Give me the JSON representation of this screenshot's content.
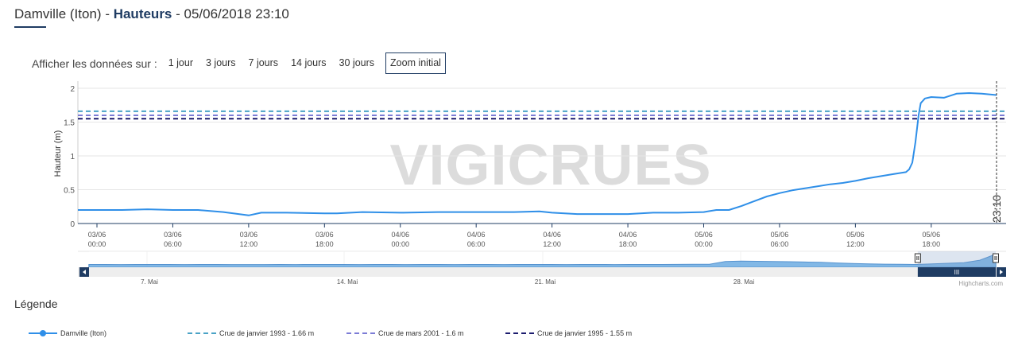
{
  "header": {
    "station": "Damville (Iton)",
    "separator1": " - ",
    "measure": "Hauteurs",
    "separator2": " - ",
    "datetime": "05/06/2018 23:10"
  },
  "range_selector": {
    "label": "Afficher les données sur :",
    "buttons": [
      "1 jour",
      "3 jours",
      "7 jours",
      "14 jours",
      "30 jours"
    ],
    "zoom_label": "Zoom initial"
  },
  "chart_data": {
    "type": "line",
    "title": "",
    "ylabel": "Hauteur (m)",
    "xlabel": "",
    "ylim": [
      0,
      2
    ],
    "y_ticks": [
      "0",
      "0.5",
      "1",
      "1.5",
      "2"
    ],
    "x_range": [
      "03/06 00:00",
      "05/06 23:10"
    ],
    "x_ticks": [
      {
        "date": "03/06",
        "time": "00:00"
      },
      {
        "date": "03/06",
        "time": "06:00"
      },
      {
        "date": "03/06",
        "time": "12:00"
      },
      {
        "date": "03/06",
        "time": "18:00"
      },
      {
        "date": "04/06",
        "time": "00:00"
      },
      {
        "date": "04/06",
        "time": "06:00"
      },
      {
        "date": "04/06",
        "time": "12:00"
      },
      {
        "date": "04/06",
        "time": "18:00"
      },
      {
        "date": "05/06",
        "time": "00:00"
      },
      {
        "date": "05/06",
        "time": "06:00"
      },
      {
        "date": "05/06",
        "time": "12:00"
      },
      {
        "date": "05/06",
        "time": "18:00"
      }
    ],
    "grid": true,
    "legend_position": "bottom",
    "current_time_label": "23:10",
    "series": [
      {
        "name": "Damville (Iton)",
        "color": "#2f8fe8",
        "x": [
          "03/06 00:00",
          "03/06 02:00",
          "03/06 04:00",
          "03/06 06:00",
          "03/06 08:00",
          "03/06 10:00",
          "03/06 12:00",
          "03/06 13:00",
          "03/06 15:00",
          "03/06 18:00",
          "03/06 19:00",
          "03/06 21:00",
          "04/06 00:00",
          "04/06 03:00",
          "04/06 06:00",
          "04/06 09:00",
          "04/06 11:00",
          "04/06 12:00",
          "04/06 14:00",
          "04/06 16:00",
          "04/06 18:00",
          "04/06 20:00",
          "04/06 22:00",
          "05/06 00:00",
          "05/06 01:00",
          "05/06 02:00",
          "05/06 03:00",
          "05/06 04:00",
          "05/06 05:00",
          "05/06 06:00",
          "05/06 07:00",
          "05/06 08:00",
          "05/06 09:00",
          "05/06 10:00",
          "05/06 11:00",
          "05/06 12:00",
          "05/06 13:00",
          "05/06 14:00",
          "05/06 15:00",
          "05/06 16:00",
          "05/06 16:15",
          "05/06 16:30",
          "05/06 16:45",
          "05/06 17:00",
          "05/06 17:10",
          "05/06 17:30",
          "05/06 18:00",
          "05/06 19:00",
          "05/06 20:00",
          "05/06 21:00",
          "05/06 22:00",
          "05/06 23:10"
        ],
        "y": [
          0.2,
          0.2,
          0.21,
          0.2,
          0.2,
          0.17,
          0.12,
          0.16,
          0.16,
          0.15,
          0.15,
          0.17,
          0.16,
          0.17,
          0.17,
          0.17,
          0.18,
          0.16,
          0.14,
          0.14,
          0.14,
          0.16,
          0.16,
          0.17,
          0.2,
          0.2,
          0.26,
          0.33,
          0.4,
          0.45,
          0.49,
          0.52,
          0.55,
          0.58,
          0.6,
          0.63,
          0.67,
          0.7,
          0.73,
          0.76,
          0.8,
          0.9,
          1.2,
          1.6,
          1.78,
          1.85,
          1.87,
          1.86,
          1.92,
          1.93,
          1.92,
          1.9
        ]
      },
      {
        "name": "Crue de janvier 1993 - 1.66 m",
        "color": "#4aa3c6",
        "value": 1.66
      },
      {
        "name": "Crue de mars 2001 - 1.6 m",
        "color": "#7c7cd6",
        "value": 1.6
      },
      {
        "name": "Crue de janvier 1995 - 1.55 m",
        "color": "#1c1c6e",
        "value": 1.55
      }
    ]
  },
  "navigator": {
    "labels": [
      "7. Mai",
      "14. Mai",
      "21. Mai",
      "28. Mai"
    ],
    "handle_glyph": "III",
    "credits": "Highcharts.com",
    "selected_fraction": [
      0.914,
      1.0
    ],
    "level": [
      0.2,
      0.2,
      0.19,
      0.2,
      0.2,
      0.2,
      0.19,
      0.2,
      0.2,
      0.19,
      0.18,
      0.19,
      0.2,
      0.19,
      0.2,
      0.2,
      0.2,
      0.19,
      0.2,
      0.2,
      0.19,
      0.2,
      0.2,
      0.19,
      0.2,
      0.2,
      0.19,
      0.2,
      0.2,
      0.2,
      0.19,
      0.2,
      0.2,
      0.19,
      0.2,
      0.2,
      0.2,
      0.21,
      0.22,
      0.22,
      0.7,
      0.75,
      0.72,
      0.7,
      0.65,
      0.6,
      0.55,
      0.45,
      0.35,
      0.3,
      0.25,
      0.22,
      0.2,
      0.3,
      0.4,
      0.5,
      0.9,
      1.9
    ]
  },
  "watermark": "VIGICRUES",
  "legend": {
    "title": "Légende"
  }
}
